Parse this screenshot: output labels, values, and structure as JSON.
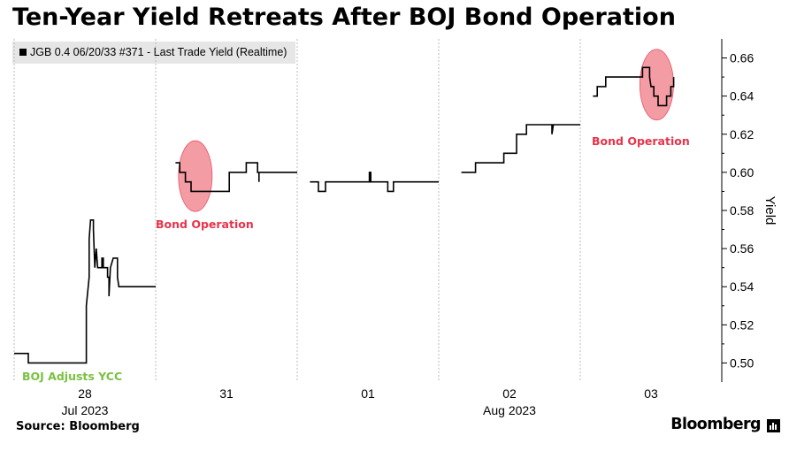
{
  "title": "Ten-Year Yield Retreats After BOJ Bond Operation",
  "legend_label": "JGB 0.4 06/20/33 #371 - Last Trade Yield (Realtime)",
  "source": "Source: Bloomberg",
  "brand": "Bloomberg",
  "colors": {
    "line": "#000000",
    "highlight": "#f28b95",
    "annotation_red": "#e8334a",
    "annotation_green": "#7ac143",
    "grid": "#bbbbbb"
  },
  "chart_data": {
    "type": "line",
    "title": "Ten-Year Yield Retreats After BOJ Bond Operation",
    "ylabel": "Yield",
    "ylim": [
      0.49,
      0.67
    ],
    "y_ticks": [
      "0.50",
      "0.52",
      "0.54",
      "0.56",
      "0.58",
      "0.60",
      "0.62",
      "0.64",
      "0.66"
    ],
    "days": [
      {
        "label": "28",
        "month_label": "Jul 2023"
      },
      {
        "label": "31",
        "month_label": ""
      },
      {
        "label": "01",
        "month_label": ""
      },
      {
        "label": "02",
        "month_label": "Aug 2023"
      },
      {
        "label": "03",
        "month_label": ""
      }
    ],
    "series": [
      {
        "name": "JGB 0.4 06/20/33 #371 - Last Trade Yield (Realtime)",
        "segments": [
          [
            [
              0.0,
              0.505
            ],
            [
              0.1,
              0.505
            ],
            [
              0.1,
              0.5
            ],
            [
              0.51,
              0.5
            ],
            [
              0.51,
              0.53
            ],
            [
              0.53,
              0.545
            ],
            [
              0.53,
              0.565
            ],
            [
              0.54,
              0.575
            ],
            [
              0.56,
              0.575
            ],
            [
              0.56,
              0.57
            ],
            [
              0.57,
              0.55
            ],
            [
              0.58,
              0.56
            ],
            [
              0.59,
              0.55
            ],
            [
              0.62,
              0.55
            ],
            [
              0.62,
              0.555
            ],
            [
              0.63,
              0.555
            ],
            [
              0.63,
              0.55
            ],
            [
              0.66,
              0.55
            ],
            [
              0.66,
              0.545
            ],
            [
              0.67,
              0.545
            ],
            [
              0.67,
              0.535
            ],
            [
              0.68,
              0.55
            ],
            [
              0.7,
              0.555
            ],
            [
              0.73,
              0.555
            ],
            [
              0.73,
              0.545
            ],
            [
              0.74,
              0.54
            ],
            [
              1.0,
              0.54
            ]
          ],
          [
            [
              0.14,
              0.605
            ],
            [
              0.17,
              0.605
            ],
            [
              0.17,
              0.6
            ],
            [
              0.21,
              0.6
            ],
            [
              0.21,
              0.595
            ],
            [
              0.25,
              0.595
            ],
            [
              0.25,
              0.59
            ],
            [
              0.52,
              0.59
            ],
            [
              0.52,
              0.6
            ],
            [
              0.64,
              0.6
            ],
            [
              0.64,
              0.605
            ],
            [
              0.72,
              0.605
            ],
            [
              0.72,
              0.6
            ],
            [
              0.73,
              0.6
            ],
            [
              0.73,
              0.595
            ],
            [
              0.73,
              0.6
            ],
            [
              1.0,
              0.6
            ]
          ],
          [
            [
              0.09,
              0.595
            ],
            [
              0.15,
              0.595
            ],
            [
              0.15,
              0.59
            ],
            [
              0.2,
              0.59
            ],
            [
              0.2,
              0.595
            ],
            [
              0.51,
              0.595
            ],
            [
              0.51,
              0.6
            ],
            [
              0.52,
              0.6
            ],
            [
              0.52,
              0.595
            ],
            [
              0.64,
              0.595
            ],
            [
              0.64,
              0.59
            ],
            [
              0.68,
              0.59
            ],
            [
              0.68,
              0.595
            ],
            [
              1.0,
              0.595
            ]
          ],
          [
            [
              0.16,
              0.6
            ],
            [
              0.26,
              0.6
            ],
            [
              0.26,
              0.605
            ],
            [
              0.46,
              0.605
            ],
            [
              0.46,
              0.61
            ],
            [
              0.55,
              0.61
            ],
            [
              0.55,
              0.62
            ],
            [
              0.62,
              0.62
            ],
            [
              0.62,
              0.625
            ],
            [
              0.8,
              0.625
            ],
            [
              0.8,
              0.62
            ],
            [
              0.81,
              0.625
            ],
            [
              1.0,
              0.625
            ]
          ],
          [
            [
              0.09,
              0.64
            ],
            [
              0.12,
              0.64
            ],
            [
              0.12,
              0.645
            ],
            [
              0.18,
              0.645
            ],
            [
              0.18,
              0.65
            ],
            [
              0.44,
              0.65
            ],
            [
              0.44,
              0.655
            ],
            [
              0.49,
              0.655
            ],
            [
              0.49,
              0.65
            ],
            [
              0.5,
              0.645
            ],
            [
              0.52,
              0.645
            ],
            [
              0.52,
              0.64
            ],
            [
              0.55,
              0.64
            ],
            [
              0.55,
              0.635
            ],
            [
              0.61,
              0.635
            ],
            [
              0.61,
              0.64
            ],
            [
              0.64,
              0.64
            ],
            [
              0.64,
              0.645
            ],
            [
              0.66,
              0.645
            ],
            [
              0.66,
              0.65
            ]
          ]
        ]
      }
    ],
    "annotations": [
      {
        "text": "Bond Operation",
        "day": 1,
        "t": 0.28,
        "y": 0.598,
        "style": "red"
      },
      {
        "text": "Bond Operation",
        "day": 4,
        "t": 0.54,
        "y": 0.646,
        "style": "red"
      },
      {
        "text": "BOJ Adjusts YCC",
        "day": 0,
        "style": "green"
      }
    ],
    "grid": "vertical-day-separators",
    "legend_position": "top-left"
  }
}
